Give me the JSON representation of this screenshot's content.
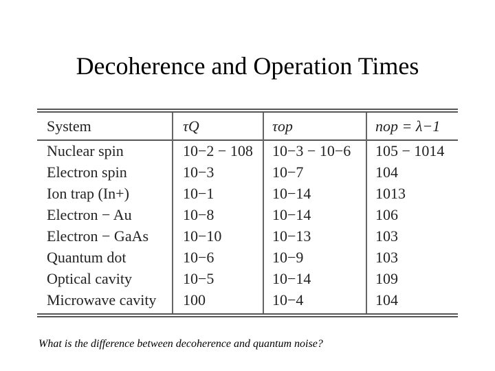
{
  "slide": {
    "title": "Decoherence and Operation Times",
    "footnote": "What is the difference between decoherence and quantum noise?"
  },
  "table": {
    "headers": {
      "system": "System",
      "tau_q": "τQ",
      "tau_op": "τop",
      "n_op": "nop = λ−1"
    },
    "rows": [
      {
        "system": "Nuclear spin",
        "tau_q": "10−2 − 108",
        "tau_op": "10−3 − 10−6",
        "n_op": "105 − 1014"
      },
      {
        "system": "Electron spin",
        "tau_q": "10−3",
        "tau_op": "10−7",
        "n_op": "104"
      },
      {
        "system": "Ion trap (In+)",
        "tau_q": "10−1",
        "tau_op": "10−14",
        "n_op": "1013"
      },
      {
        "system": "Electron − Au",
        "tau_q": "10−8",
        "tau_op": "10−14",
        "n_op": "106"
      },
      {
        "system": "Electron − GaAs",
        "tau_q": "10−10",
        "tau_op": "10−13",
        "n_op": "103"
      },
      {
        "system": "Quantum dot",
        "tau_q": "10−6",
        "tau_op": "10−9",
        "n_op": "103"
      },
      {
        "system": "Optical cavity",
        "tau_q": "10−5",
        "tau_op": "10−14",
        "n_op": "109"
      },
      {
        "system": "Microwave cavity",
        "tau_q": "100",
        "tau_op": "10−4",
        "n_op": "104"
      }
    ]
  }
}
